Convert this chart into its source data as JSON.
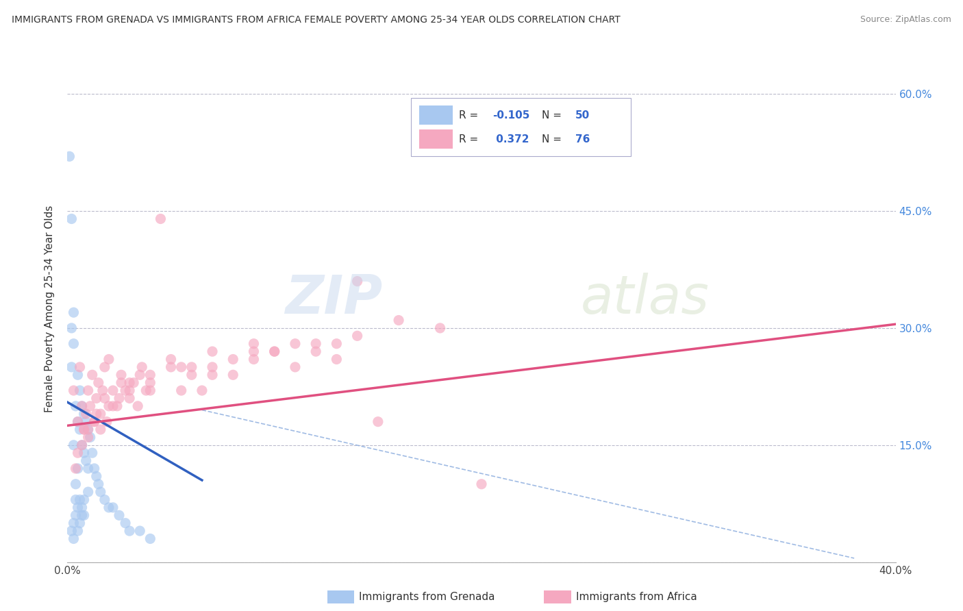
{
  "title": "IMMIGRANTS FROM GRENADA VS IMMIGRANTS FROM AFRICA FEMALE POVERTY AMONG 25-34 YEAR OLDS CORRELATION CHART",
  "source": "Source: ZipAtlas.com",
  "ylabel": "Female Poverty Among 25-34 Year Olds",
  "xlim": [
    0.0,
    0.4
  ],
  "ylim": [
    0.0,
    0.65
  ],
  "color_grenada": "#a8c8f0",
  "color_africa": "#f5a8c0",
  "color_line_grenada": "#3060c0",
  "color_line_africa": "#e05080",
  "color_diag": "#88aadd",
  "background_color": "#ffffff",
  "grenada_scatter_x": [
    0.001,
    0.002,
    0.002,
    0.002,
    0.003,
    0.003,
    0.003,
    0.004,
    0.004,
    0.004,
    0.005,
    0.005,
    0.005,
    0.006,
    0.006,
    0.006,
    0.007,
    0.007,
    0.007,
    0.008,
    0.008,
    0.008,
    0.009,
    0.009,
    0.01,
    0.01,
    0.011,
    0.012,
    0.013,
    0.014,
    0.015,
    0.016,
    0.018,
    0.02,
    0.022,
    0.025,
    0.028,
    0.03,
    0.035,
    0.04,
    0.002,
    0.003,
    0.003,
    0.004,
    0.005,
    0.005,
    0.006,
    0.007,
    0.008,
    0.01
  ],
  "grenada_scatter_y": [
    0.52,
    0.44,
    0.3,
    0.25,
    0.32,
    0.28,
    0.15,
    0.2,
    0.1,
    0.08,
    0.24,
    0.18,
    0.12,
    0.22,
    0.17,
    0.08,
    0.2,
    0.15,
    0.07,
    0.19,
    0.14,
    0.06,
    0.18,
    0.13,
    0.17,
    0.12,
    0.16,
    0.14,
    0.12,
    0.11,
    0.1,
    0.09,
    0.08,
    0.07,
    0.07,
    0.06,
    0.05,
    0.04,
    0.04,
    0.03,
    0.04,
    0.05,
    0.03,
    0.06,
    0.04,
    0.07,
    0.05,
    0.06,
    0.08,
    0.09
  ],
  "africa_scatter_x": [
    0.003,
    0.005,
    0.006,
    0.007,
    0.008,
    0.009,
    0.01,
    0.011,
    0.012,
    0.013,
    0.014,
    0.015,
    0.016,
    0.017,
    0.018,
    0.019,
    0.02,
    0.022,
    0.024,
    0.026,
    0.028,
    0.03,
    0.032,
    0.034,
    0.036,
    0.038,
    0.04,
    0.045,
    0.05,
    0.055,
    0.06,
    0.065,
    0.07,
    0.08,
    0.09,
    0.1,
    0.11,
    0.12,
    0.13,
    0.14,
    0.005,
    0.008,
    0.01,
    0.014,
    0.018,
    0.022,
    0.026,
    0.03,
    0.035,
    0.04,
    0.05,
    0.06,
    0.07,
    0.08,
    0.09,
    0.1,
    0.12,
    0.14,
    0.16,
    0.18,
    0.004,
    0.007,
    0.01,
    0.013,
    0.016,
    0.02,
    0.025,
    0.03,
    0.04,
    0.055,
    0.07,
    0.09,
    0.11,
    0.13,
    0.15,
    0.2
  ],
  "africa_scatter_y": [
    0.22,
    0.18,
    0.25,
    0.2,
    0.17,
    0.19,
    0.22,
    0.2,
    0.24,
    0.18,
    0.21,
    0.23,
    0.19,
    0.22,
    0.25,
    0.18,
    0.26,
    0.22,
    0.2,
    0.24,
    0.22,
    0.21,
    0.23,
    0.2,
    0.25,
    0.22,
    0.24,
    0.44,
    0.26,
    0.22,
    0.24,
    0.22,
    0.25,
    0.24,
    0.26,
    0.27,
    0.25,
    0.27,
    0.28,
    0.36,
    0.14,
    0.17,
    0.16,
    0.19,
    0.21,
    0.2,
    0.23,
    0.22,
    0.24,
    0.23,
    0.25,
    0.25,
    0.27,
    0.26,
    0.28,
    0.27,
    0.28,
    0.29,
    0.31,
    0.3,
    0.12,
    0.15,
    0.17,
    0.18,
    0.17,
    0.2,
    0.21,
    0.23,
    0.22,
    0.25,
    0.24,
    0.27,
    0.28,
    0.26,
    0.18,
    0.1
  ],
  "grenada_line_x0": 0.0,
  "grenada_line_x1": 0.065,
  "grenada_line_y0": 0.205,
  "grenada_line_y1": 0.105,
  "africa_line_x0": 0.0,
  "africa_line_x1": 0.4,
  "africa_line_y0": 0.175,
  "africa_line_y1": 0.305,
  "diag_line_x0": 0.065,
  "diag_line_x1": 0.38,
  "diag_line_y0": 0.195,
  "diag_line_y1": 0.005
}
